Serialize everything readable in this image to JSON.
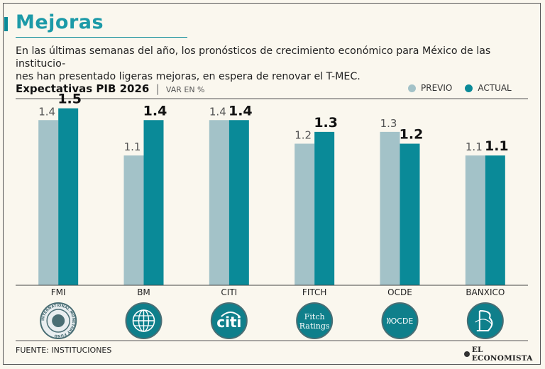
{
  "header": {
    "title": "Mejoras",
    "subtitle_line1": "En las últimas semanas del año, los pronósticos de crecimiento económico para México de las institucio-",
    "subtitle_line2": "nes han presentado ligeras mejoras, en espera de renovar el T-MEC."
  },
  "chart_data": {
    "type": "bar",
    "title": "Expectativas PIB 2026",
    "separator": "|",
    "unit": "VAR EN %",
    "categories": [
      "FMI",
      "BM",
      "CITI",
      "FITCH",
      "OCDE",
      "BANXICO"
    ],
    "series": [
      {
        "name": "PREVIO",
        "values": [
          1.4,
          1.1,
          1.4,
          1.2,
          1.3,
          1.1
        ],
        "labels": [
          "1.4",
          "1.1",
          "1.4",
          "1.2",
          "1.3",
          "1.1"
        ]
      },
      {
        "name": "ACTUAL",
        "values": [
          1.5,
          1.4,
          1.4,
          1.3,
          1.2,
          1.1
        ],
        "labels": [
          "1.5",
          "1.4",
          "1.4",
          "1.3",
          "1.2",
          "1.1"
        ]
      }
    ],
    "ylim": [
      0,
      1.6
    ],
    "grid": false,
    "legend_position": "top-right"
  },
  "logos": [
    {
      "category": "FMI",
      "icon": "imf-seal-icon",
      "text": "INTERNATIONAL MONETARY FUND"
    },
    {
      "category": "BM",
      "icon": "globe-icon",
      "text": ""
    },
    {
      "category": "CITI",
      "icon": "citi-logo-icon",
      "text": "citi"
    },
    {
      "category": "FITCH",
      "icon": "fitch-logo-icon",
      "text": "Fitch Ratings"
    },
    {
      "category": "OCDE",
      "icon": "ocde-logo-icon",
      "text": "OCDE"
    },
    {
      "category": "BANXICO",
      "icon": "banxico-logo-icon",
      "text": "BdeM"
    }
  ],
  "colors": {
    "previo": "#a3c2c8",
    "actual": "#0a8a98",
    "accent": "#1c9aa8",
    "logo_bg": "#0f7f8b",
    "logo_ring": "#4a6e74"
  },
  "footer": {
    "source": "FUENTE: INSTITUCIONES",
    "brand": "EL ECONOMISTA"
  }
}
